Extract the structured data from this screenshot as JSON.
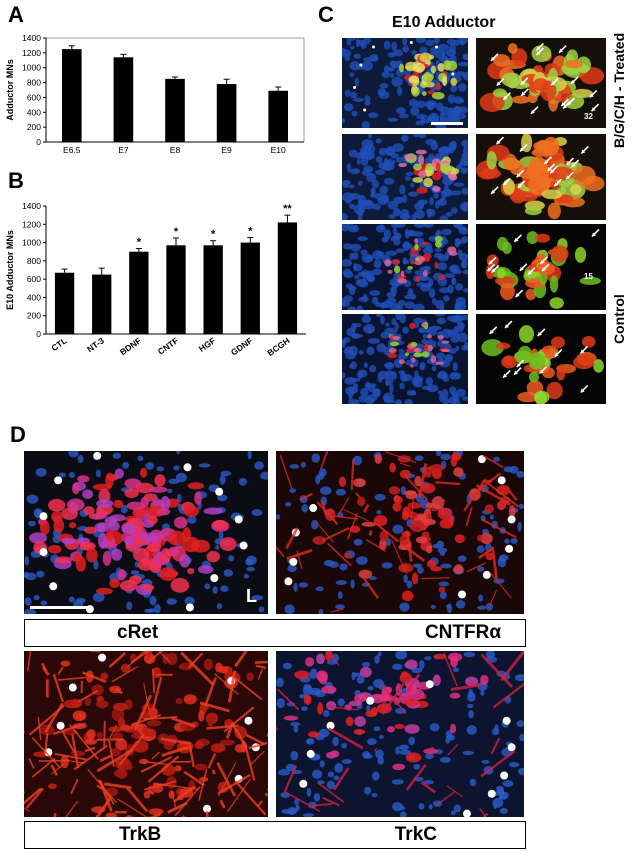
{
  "panel_labels": {
    "a": "A",
    "b": "B",
    "c": "C",
    "d": "D"
  },
  "chart_data": [
    {
      "type": "bar",
      "panel": "A",
      "categories": [
        "E6.5",
        "E7",
        "E8",
        "E9",
        "E10"
      ],
      "values": [
        1250,
        1140,
        850,
        780,
        690
      ],
      "errors": [
        45,
        40,
        25,
        65,
        50
      ],
      "xlabel": "",
      "ylabel": "Adductor MNs",
      "ylim": [
        0,
        1400
      ],
      "yticks": [
        "0",
        "200",
        "400",
        "600",
        "800",
        "1000",
        "1200",
        "1400"
      ],
      "bar_color": "#000000"
    },
    {
      "type": "bar",
      "panel": "B",
      "categories": [
        "CTL",
        "NT-3",
        "BDNF",
        "CNTF",
        "HGF",
        "GDNF",
        "BCGH"
      ],
      "values": [
        670,
        650,
        900,
        970,
        970,
        1000,
        1220
      ],
      "errors": [
        40,
        70,
        35,
        80,
        50,
        55,
        80
      ],
      "significance": [
        "",
        "",
        "*",
        "*",
        "*",
        "*",
        "**"
      ],
      "xlabel": "",
      "ylabel": "E10 Adductor MNs",
      "ylim": [
        0,
        1400
      ],
      "yticks": [
        "0",
        "200",
        "400",
        "600",
        "800",
        "1000",
        "1200",
        "1400"
      ],
      "bar_color": "#000000"
    }
  ],
  "panel_c": {
    "title": "E10 Adductor",
    "treated_label": "B/G/C/H - Treated",
    "control_label": "Control",
    "treated_count": "32",
    "control_count": "15"
  },
  "panel_d": {
    "corner_label": "L",
    "labels_top": [
      "cRet",
      "CNTFRα"
    ],
    "labels_bottom": [
      "TrkB",
      "TrkC"
    ]
  },
  "colors": {
    "nuclei_blue": "#1f4fb8",
    "stain_red": "#e02020",
    "gfp_green": "#8fd62a",
    "marker_white": "#ffffff"
  }
}
